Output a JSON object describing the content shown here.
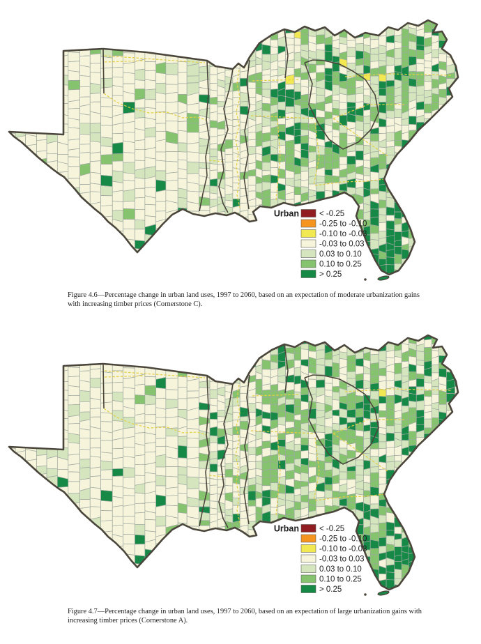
{
  "page": {
    "background": "#ffffff"
  },
  "legend": {
    "title": "Urban",
    "entries": [
      {
        "label": "< -0.25",
        "color": "#8f1d21"
      },
      {
        "label": "-0.25 to -0.10",
        "color": "#f5941f"
      },
      {
        "label": "-0.10 to -0.03",
        "color": "#f2e851"
      },
      {
        "label": "-0.03 to 0.03",
        "color": "#f6f4da"
      },
      {
        "label": "0.03 to 0.10",
        "color": "#d5e6bf"
      },
      {
        "label": "0.10 to 0.25",
        "color": "#85c36e"
      },
      {
        "label": "> 0.25",
        "color": "#168947"
      }
    ]
  },
  "figures": [
    {
      "id": "figure-4.6",
      "caption": "Figure 4.6—Percentage change in urban land uses, 1997 to 2060, based on an expectation of moderate urbanization gains with increasing timber prices (Cornerstone C)."
    },
    {
      "id": "figure-4.7",
      "caption": "Figure 4.7—Percentage change in urban land uses, 1997 to 2060, based on an expectation of large urbanization gains with increasing timber prices (Cornerstone A)."
    }
  ],
  "map_colors": {
    "county_border": "#9fa8a0",
    "region_outline": "#4b463c",
    "state_border_yellow": "#e3cf45",
    "legend_swatch_border": "#60605a",
    "legend_text": "#1c1c1c"
  }
}
